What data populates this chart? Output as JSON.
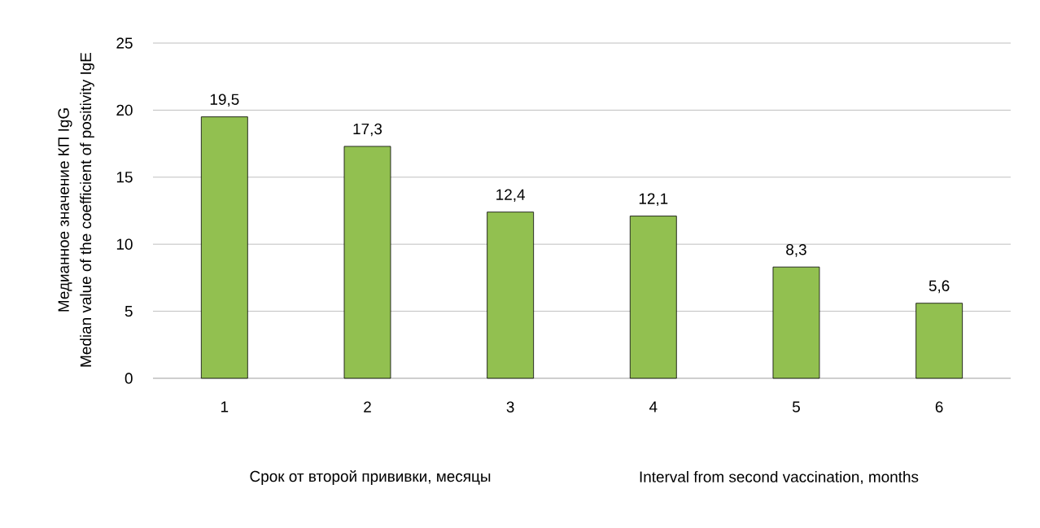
{
  "chart_data": {
    "type": "bar",
    "categories": [
      "1",
      "2",
      "3",
      "4",
      "5",
      "6"
    ],
    "values": [
      19.5,
      17.3,
      12.4,
      12.1,
      8.3,
      5.6
    ],
    "value_labels": [
      "19,5",
      "17,3",
      "12,4",
      "12,1",
      "8,3",
      "5,6"
    ],
    "color": "#92c050",
    "ylim": [
      0,
      25
    ],
    "yticks": [
      0,
      5,
      10,
      15,
      20,
      25
    ],
    "grid": "y",
    "ylabel": "Медианное значение КП IgG",
    "xlabel": "Срок от  второй прививки, месяцы",
    "annotations": [
      "Median value of the coefficient of positivity IgE",
      "Interval from second vaccination, months"
    ]
  }
}
